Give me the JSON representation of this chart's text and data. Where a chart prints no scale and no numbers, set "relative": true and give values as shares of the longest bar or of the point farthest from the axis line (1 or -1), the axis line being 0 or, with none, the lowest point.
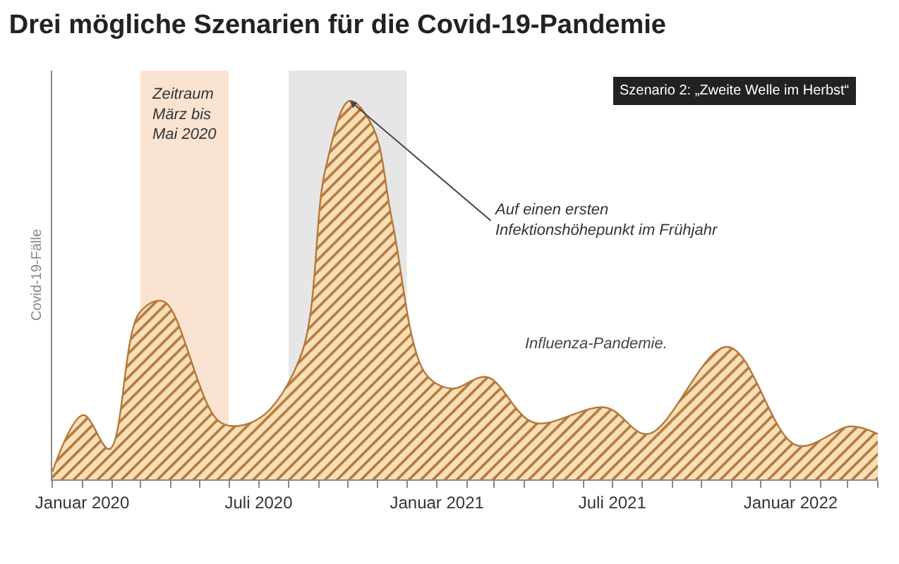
{
  "chart_data": {
    "type": "area",
    "title": "Drei mögliche Szenarien für die Covid-19-Pandemie",
    "subtitle": "Szenario 2: „Zweite Welle im Herbst“",
    "ylabel": "Covid-19-Fälle",
    "relative": true,
    "x": [
      "2019-12-01",
      "2020-01-02",
      "2020-01-29",
      "2020-02-29",
      "2020-03-25",
      "2020-05-23",
      "2020-07-01",
      "2020-08-14",
      "2020-09-08",
      "2020-10-03",
      "2020-10-27",
      "2020-11-16",
      "2020-12-20",
      "2021-01-16",
      "2021-02-22",
      "2021-04-11",
      "2021-06-24",
      "2021-08-07",
      "2021-10-28",
      "2022-01-07",
      "2022-03-04",
      "2022-04-01"
    ],
    "series": [
      {
        "color": "#b5773a",
        "values": [
          0.02,
          0.17,
          0.08,
          0.44,
          0.47,
          0.15,
          0.16,
          0.33,
          0.82,
          1.0,
          0.93,
          0.68,
          0.28,
          0.24,
          0.27,
          0.15,
          0.19,
          0.12,
          0.35,
          0.09,
          0.14,
          0.12
        ]
      }
    ],
    "xlim": [
      "2019-12-01",
      "2022-04-01"
    ],
    "xticks": [
      {
        "value": "2019-12-01",
        "label": null
      },
      {
        "value": "2020-01-01",
        "label": "Januar 2020"
      },
      {
        "value": "2020-02-01",
        "label": null
      },
      {
        "value": "2020-03-01",
        "label": null
      },
      {
        "value": "2020-04-01",
        "label": null
      },
      {
        "value": "2020-05-01",
        "label": null
      },
      {
        "value": "2020-06-01",
        "label": null
      },
      {
        "value": "2020-07-01",
        "label": "Juli 2020"
      },
      {
        "value": "2020-08-01",
        "label": null
      },
      {
        "value": "2020-09-01",
        "label": null
      },
      {
        "value": "2020-10-01",
        "label": null
      },
      {
        "value": "2020-11-01",
        "label": null
      },
      {
        "value": "2020-12-01",
        "label": null
      },
      {
        "value": "2021-01-01",
        "label": "Januar 2021"
      },
      {
        "value": "2021-02-01",
        "label": null
      },
      {
        "value": "2021-03-01",
        "label": null
      },
      {
        "value": "2021-04-01",
        "label": null
      },
      {
        "value": "2021-05-01",
        "label": null
      },
      {
        "value": "2021-06-01",
        "label": null
      },
      {
        "value": "2021-07-01",
        "label": "Juli 2021"
      },
      {
        "value": "2021-08-01",
        "label": null
      },
      {
        "value": "2021-09-01",
        "label": null
      },
      {
        "value": "2021-10-01",
        "label": null
      },
      {
        "value": "2021-11-01",
        "label": null
      },
      {
        "value": "2021-12-01",
        "label": null
      },
      {
        "value": "2022-01-01",
        "label": "Januar 2022"
      },
      {
        "value": "2022-02-01",
        "label": null
      },
      {
        "value": "2022-03-01",
        "label": null
      },
      {
        "value": "2022-04-01",
        "label": null
      }
    ],
    "bands": [
      {
        "axis": "x",
        "from": "2020-03-01",
        "to": "2020-05-31",
        "label": "Zeitraum\nMärz bis\nMai 2020",
        "color": "#fbe3d2"
      },
      {
        "axis": "x",
        "from": "2020-08-01",
        "to": "2020-12-01",
        "label": null,
        "color": "#e6e6e6"
      }
    ],
    "annotations": [
      {
        "text": "Auf einen ersten\nInfektionshöhepunkt im Frühjahr",
        "x": "2020-10-03",
        "y": 1.0
      },
      "Influenza-Pandemie."
    ],
    "grid": false
  }
}
